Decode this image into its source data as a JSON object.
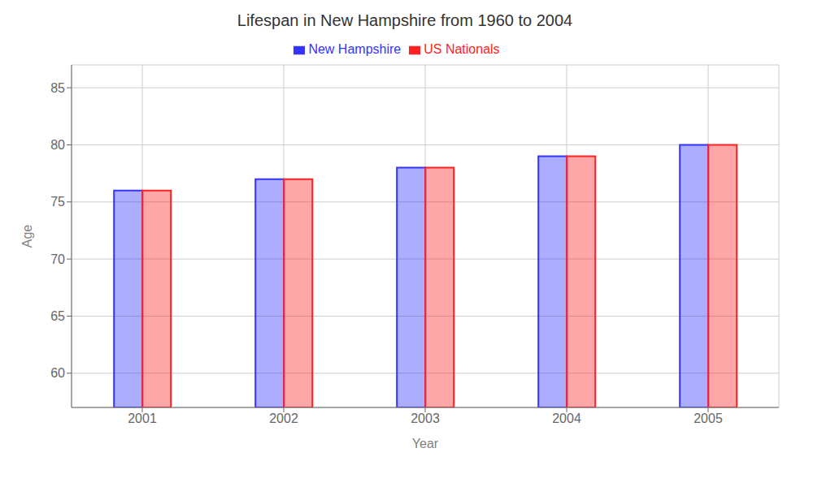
{
  "chart_data": {
    "type": "bar",
    "title": "Lifespan in New Hampshire from 1960 to 2004",
    "xlabel": "Year",
    "ylabel": "Age",
    "categories": [
      "2001",
      "2002",
      "2003",
      "2004",
      "2005"
    ],
    "series": [
      {
        "name": "New Hampshire",
        "color": "#3333ff",
        "values": [
          76,
          77,
          78,
          79,
          80
        ]
      },
      {
        "name": "US Nationals",
        "color": "#ff2222",
        "values": [
          76,
          77,
          78,
          79,
          80
        ]
      }
    ],
    "ylim": [
      57,
      87
    ],
    "yticks": [
      60,
      65,
      70,
      75,
      80,
      85
    ],
    "grid": true,
    "legend": "top"
  }
}
